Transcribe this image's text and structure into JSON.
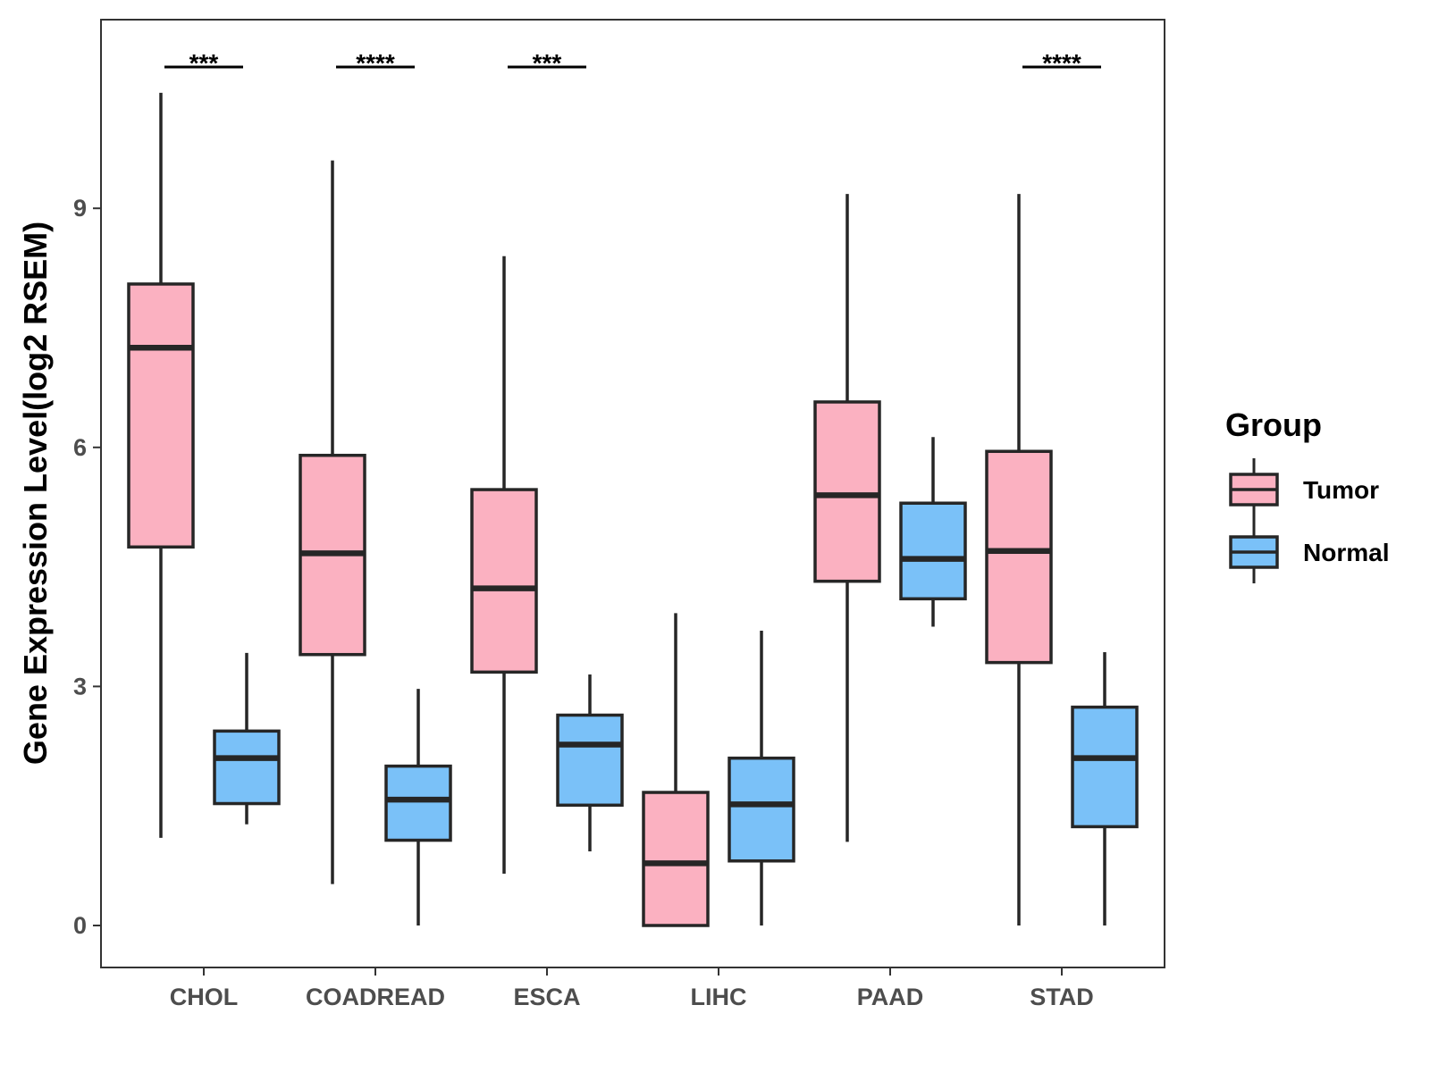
{
  "chart_data": {
    "type": "boxplot",
    "title": "",
    "xlabel": "",
    "ylabel": "Gene Expression Level(log2 RSEM)",
    "ylim": [
      -0.55,
      11.4
    ],
    "yticks": [
      0,
      3,
      6,
      9
    ],
    "grid": false,
    "legend": {
      "title": "Group",
      "position": "right",
      "entries": [
        {
          "name": "Tumor",
          "color": "#FBB1C1"
        },
        {
          "name": "Normal",
          "color": "#7AC1F8"
        }
      ]
    },
    "categories": [
      "CHOL",
      "COADREAD",
      "ESCA",
      "LIHC",
      "PAAD",
      "STAD"
    ],
    "series": [
      {
        "name": "Tumor",
        "color": "#FBB1C1",
        "boxes": [
          {
            "min": 1.1,
            "q1": 4.75,
            "median": 7.25,
            "q3": 8.05,
            "max": 10.45
          },
          {
            "min": 0.52,
            "q1": 3.4,
            "median": 4.67,
            "q3": 5.9,
            "max": 9.6
          },
          {
            "min": 0.65,
            "q1": 3.18,
            "median": 4.23,
            "q3": 5.47,
            "max": 8.4
          },
          {
            "min": 0.0,
            "q1": 0.0,
            "median": 0.78,
            "q3": 1.67,
            "max": 3.92
          },
          {
            "min": 1.05,
            "q1": 4.32,
            "median": 5.4,
            "q3": 6.57,
            "max": 9.18
          },
          {
            "min": 0.0,
            "q1": 3.3,
            "median": 4.7,
            "q3": 5.95,
            "max": 9.18
          }
        ]
      },
      {
        "name": "Normal",
        "color": "#7AC1F8",
        "boxes": [
          {
            "min": 1.27,
            "q1": 1.53,
            "median": 2.1,
            "q3": 2.44,
            "max": 3.42
          },
          {
            "min": 0.0,
            "q1": 1.07,
            "median": 1.58,
            "q3": 2.0,
            "max": 2.97
          },
          {
            "min": 0.93,
            "q1": 1.51,
            "median": 2.27,
            "q3": 2.64,
            "max": 3.15
          },
          {
            "min": 0.0,
            "q1": 0.81,
            "median": 1.52,
            "q3": 2.1,
            "max": 3.7
          },
          {
            "min": 3.75,
            "q1": 4.1,
            "median": 4.6,
            "q3": 5.3,
            "max": 6.13
          },
          {
            "min": 0.0,
            "q1": 1.24,
            "median": 2.1,
            "q3": 2.74,
            "max": 3.43
          }
        ]
      }
    ],
    "annotations": [
      {
        "category": "CHOL",
        "label": "***"
      },
      {
        "category": "COADREAD",
        "label": "****"
      },
      {
        "category": "ESCA",
        "label": "***"
      },
      {
        "category": "STAD",
        "label": "****"
      }
    ]
  }
}
